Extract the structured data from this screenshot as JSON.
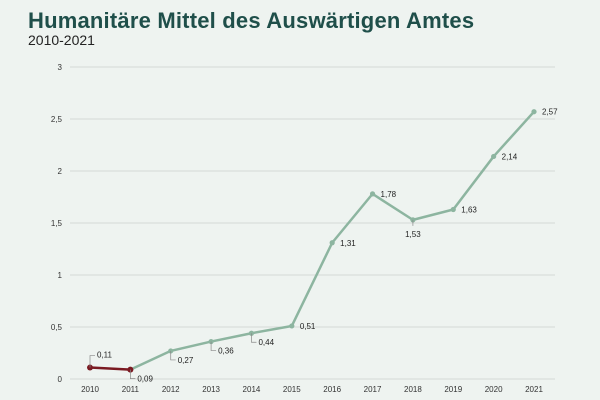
{
  "chart_data": {
    "type": "line",
    "title": "Humanitäre Mittel des Auswärtigen Amtes",
    "subtitle": "2010-2021",
    "xlabel": "",
    "ylabel": "",
    "ylim": [
      0,
      3
    ],
    "yticks": [
      "0",
      "0,5",
      "1",
      "1,5",
      "2",
      "2,5",
      "3"
    ],
    "ytick_values": [
      0,
      0.5,
      1,
      1.5,
      2,
      2.5,
      3
    ],
    "grid": true,
    "x": [
      "2010",
      "2011",
      "2012",
      "2013",
      "2014",
      "2015",
      "2016",
      "2017",
      "2018",
      "2019",
      "2020",
      "2021"
    ],
    "values": [
      0.11,
      0.09,
      0.27,
      0.36,
      0.44,
      0.51,
      1.31,
      1.78,
      1.53,
      1.63,
      2.14,
      2.57
    ],
    "value_labels": [
      "0,11",
      "0,09",
      "0,27",
      "0,36",
      "0,44",
      "0,51",
      "1,31",
      "1,78",
      "1,53",
      "1,63",
      "2,14",
      "2,57"
    ],
    "colors": {
      "main": "#8db5a0",
      "highlight": "#7a1a22",
      "grid": "#d4d9d6",
      "title": "#1f4f4a"
    },
    "highlight_segment": [
      0,
      1
    ]
  }
}
